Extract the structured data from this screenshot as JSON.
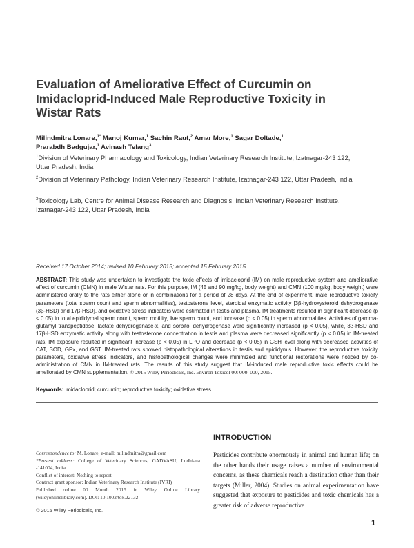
{
  "title": "Evaluation of Ameliorative Effect of Curcumin on Imidacloprid-Induced Male Reproductive Toxicity in Wistar Rats",
  "authors": [
    {
      "name": "Milindmitra Lonare,",
      "sup": "1*"
    },
    {
      "name": "Manoj Kumar,",
      "sup": "1"
    },
    {
      "name": "Sachin Raut,",
      "sup": "2"
    },
    {
      "name": "Amar More,",
      "sup": "1"
    },
    {
      "name": "Sagar Doltade,",
      "sup": "1"
    },
    {
      "name": "Prarabdh Badgujar,",
      "sup": "1"
    },
    {
      "name": "Avinash Telang",
      "sup": "3"
    }
  ],
  "affiliations": [
    {
      "sup": "1",
      "text": "Division of Veterinary Pharmacology and Toxicology, Indian Veterinary Research Institute, Izatnagar-243 122, Uttar Pradesh, India"
    },
    {
      "sup": "2",
      "text": "Division of Veterinary Pathology, Indian Veterinary Research Institute, Izatnagar-243 122, Uttar Pradesh, India"
    },
    {
      "sup": "3",
      "text": "Toxicology Lab, Centre for Animal Disease Research and Diagnosis, Indian Veterinary Research Institute, Izatnagar-243 122, Uttar Pradesh, India"
    }
  ],
  "received": "Received 17 October 2014; revised 10 February 2015; accepted 15 February 2015",
  "abstract": {
    "label": "ABSTRACT:",
    "text": " This study was undertaken to investigate the toxic effects of imidacloprid (IM) on male reproductive system and ameliorative effect of curcumin (CMN) in male Wistar rats. For this purpose, IM (45 and 90 mg/kg, body weight) and CMN (100 mg/kg, body weight) were administered orally to the rats either alone or in combinations for a period of 28 days. At the end of experiment, male reproductive toxicity parameters (total sperm count and sperm abnormalities), testosterone level, steroidal enzymatic activity [3β-hydroxysteroid dehydrogenase (3β-HSD) and 17β-HSD], and oxidative stress indicators were estimated in testis and plasma. IM treatments resulted in significant decrease (p < 0.05) in total epididymal sperm count, sperm motility, live sperm count, and increase (p < 0.05) in sperm abnormalities. Activities of gamma-glutamyl transpeptidase, lactate dehydrogenase-x, and sorbitol dehydrogenase were significantly increased (p < 0.05), while, 3β-HSD and 17β-HSD enzymatic activity along with testosterone concentration in testis and plasma were decreased significantly (p < 0.05) in IM-treated rats. IM exposure resulted in significant increase (p < 0.05) in LPO and decrease (p < 0.05) in GSH level along with decreased activities of CAT, SOD, GPx, and GST. IM-treated rats showed histopathological alterations in testis and epididymis. However, the reproductive toxicity parameters, oxidative stress indicators, and histopathological changes were minimized and functional restorations were noticed by co-administration of CMN in IM-treated rats. The results of this study suggest that IM-induced male reproductive toxic effects could be ameliorated by CMN supplementation. ",
    "citation": "© 2015 Wiley Periodicals, Inc. Environ Toxicol 00: 000–000, 2015."
  },
  "keywords": {
    "label": "Keywords:",
    "text": " imidacloprid; curcumin; reproductive toxicity; oxidative stress"
  },
  "introduction": {
    "heading": "INTRODUCTION",
    "text": "Pesticides contribute enormously in animal and human life; on the other hands their usage raises a number of environmental concerns, as these chemicals reach a destination other than their targets (Miller, 2004). Studies on animal experimentation have suggested that exposure to pesticides and toxic chemicals has a greater risk of adverse reproductive"
  },
  "footnotes": {
    "correspondence_label": "Correspondence to:",
    "correspondence": " M. Lonare; e-mail: milindmitra@gmail.com",
    "present_label": "*Present address:",
    "present": " College of Veterinary Sciences, GADVASU, Ludhiana -141004, India",
    "conflict": "Conflict of interest: Nothing to report.",
    "grant": "Contract grant sponsor: Indian Veterinary Research Institute (IVRI)",
    "published": "Published online 00 Month 2015 in Wiley Online Library (wileyonlinelibrary.com). DOI: 10.1002/tox.22132"
  },
  "copyright": "© 2015 Wiley Periodicals, Inc.",
  "page_number": "1"
}
